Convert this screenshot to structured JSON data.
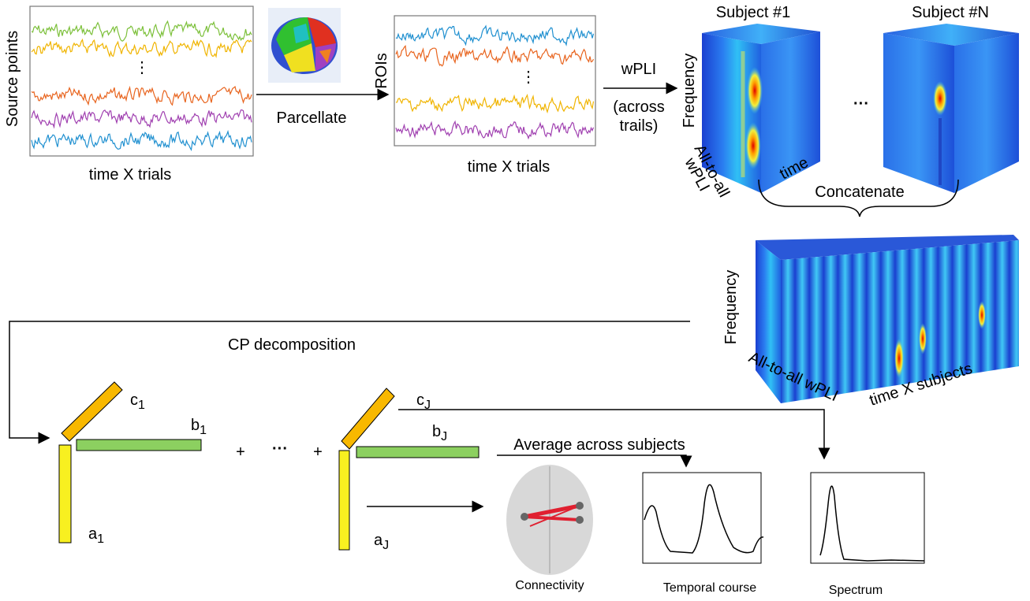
{
  "source": {
    "ylabel": "Source points",
    "xlabel": "time X trials",
    "dots": "⋮"
  },
  "parcellate": "Parcellate",
  "rois": {
    "ylabel": "ROIs",
    "xlabel": "time X trials",
    "dots": "⋮"
  },
  "wpli": {
    "label": "wPLI",
    "note": [
      "(across",
      "trails)"
    ]
  },
  "subjects": [
    "Subject #1",
    "Subject #N"
  ],
  "subjects_ellipsis": "···",
  "cube_axes": {
    "frequency": "Frequency",
    "connectivity": [
      "All-to-all",
      "wPLI"
    ],
    "time": "time"
  },
  "concatenate": "Concatenate",
  "concat_cube": {
    "frequency": "Frequency",
    "connectivity": "All-to-all wPLI",
    "time": "time X subjects"
  },
  "cp": "CP decomposition",
  "terms": [
    {
      "c": {
        "letter": "c",
        "sub": "1"
      },
      "b": {
        "letter": "b",
        "sub": "1"
      },
      "a": {
        "letter": "a",
        "sub": "1"
      }
    },
    {
      "c": {
        "letter": "c",
        "sub": "J"
      },
      "b": {
        "letter": "b",
        "sub": "J"
      },
      "a": {
        "letter": "a",
        "sub": "J"
      }
    }
  ],
  "operators": [
    "+",
    "···",
    "+"
  ],
  "average": "Average across subjects",
  "outputs": [
    "Connectivity",
    "Temporal course",
    "Spectrum"
  ]
}
